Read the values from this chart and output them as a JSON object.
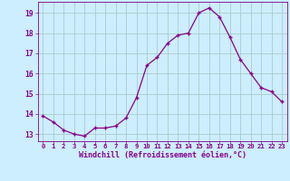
{
  "x": [
    0,
    1,
    2,
    3,
    4,
    5,
    6,
    7,
    8,
    9,
    10,
    11,
    12,
    13,
    14,
    15,
    16,
    17,
    18,
    19,
    20,
    21,
    22,
    23
  ],
  "y": [
    13.9,
    13.6,
    13.2,
    13.0,
    12.9,
    13.3,
    13.3,
    13.4,
    13.8,
    14.8,
    16.4,
    16.8,
    17.5,
    17.9,
    18.0,
    19.0,
    19.25,
    18.8,
    17.8,
    16.7,
    16.0,
    15.3,
    15.1,
    14.6
  ],
  "line_color": "#880088",
  "bg_color": "#cceeff",
  "grid_color": "#aacccc",
  "xlabel": "Windchill (Refroidissement éolien,°C)",
  "yticks": [
    13,
    14,
    15,
    16,
    17,
    18,
    19
  ],
  "xlim": [
    -0.5,
    23.5
  ],
  "ylim": [
    12.65,
    19.55
  ],
  "tick_color": "#880088",
  "label_color": "#880088",
  "font_family": "monospace",
  "xlabel_fontsize": 6.0,
  "ytick_fontsize": 5.8,
  "xtick_fontsize": 5.2
}
